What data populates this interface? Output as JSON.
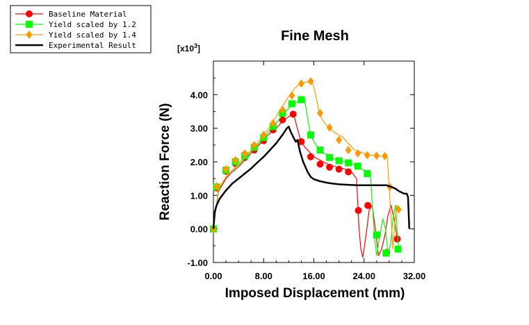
{
  "chart_data": {
    "type": "line",
    "title": "Fine Mesh",
    "xlabel": "Imposed Displacement (mm)",
    "ylabel": "Reaction Force (N)",
    "y_multiplier_label": "[x10",
    "y_multiplier_exp": "3",
    "y_multiplier_close": "]",
    "xlim": [
      0,
      32
    ],
    "ylim": [
      -1,
      5
    ],
    "x_ticks": [
      0,
      8,
      16,
      24,
      32
    ],
    "x_tick_labels": [
      "0.00",
      "8.00",
      "16.00",
      "24.00",
      "32.00"
    ],
    "y_ticks": [
      -1,
      0,
      1,
      2,
      3,
      4
    ],
    "y_tick_labels": [
      "-1.00",
      "0.00",
      "1.00",
      "2.00",
      "3.00",
      "4.00"
    ],
    "grid": false,
    "legend_position": "top-left",
    "series": [
      {
        "name": "Baseline Material",
        "color": "#ff0000",
        "marker": "circle",
        "points": [
          [
            0,
            0
          ],
          [
            0.4,
            0.6
          ],
          [
            0.8,
            1.1
          ],
          [
            1.2,
            1.25
          ],
          [
            2,
            1.5
          ],
          [
            3,
            1.7
          ],
          [
            4,
            1.85
          ],
          [
            5,
            2.05
          ],
          [
            6,
            2.25
          ],
          [
            7,
            2.45
          ],
          [
            8,
            2.65
          ],
          [
            9,
            2.85
          ],
          [
            10,
            3.0
          ],
          [
            11,
            3.2
          ],
          [
            12,
            3.35
          ],
          [
            12.8,
            3.4
          ],
          [
            13.3,
            3.05
          ],
          [
            13.8,
            2.7
          ],
          [
            14.5,
            2.45
          ],
          [
            16,
            2.15
          ],
          [
            17,
            2.05
          ],
          [
            18,
            1.95
          ],
          [
            19,
            1.88
          ],
          [
            20,
            1.83
          ],
          [
            21,
            1.78
          ],
          [
            22,
            1.7
          ],
          [
            22.8,
            1.5
          ],
          [
            23.2,
            0.0
          ],
          [
            23.5,
            -0.6
          ],
          [
            23.8,
            -0.85
          ],
          [
            24.3,
            -0.2
          ],
          [
            24.8,
            0.55
          ],
          [
            25.3,
            0.7
          ],
          [
            25.8,
            0.0
          ],
          [
            26.3,
            -0.8
          ],
          [
            26.8,
            -0.6
          ],
          [
            27.3,
            -0.2
          ],
          [
            27.8,
            0.4
          ],
          [
            28.3,
            0.7
          ],
          [
            28.8,
            0.3
          ],
          [
            29.3,
            -0.3
          ]
        ],
        "marker_points": [
          [
            0,
            0
          ],
          [
            0.5,
            1.22
          ],
          [
            2,
            1.72
          ],
          [
            3.5,
            1.95
          ],
          [
            5,
            2.13
          ],
          [
            6.5,
            2.35
          ],
          [
            8,
            2.63
          ],
          [
            9.5,
            2.95
          ],
          [
            11,
            3.25
          ],
          [
            12.7,
            3.42
          ],
          [
            14,
            2.6
          ],
          [
            15.5,
            2.15
          ],
          [
            17,
            1.93
          ],
          [
            18.5,
            1.84
          ],
          [
            20,
            1.78
          ],
          [
            21.5,
            1.7
          ],
          [
            23.1,
            0.55
          ],
          [
            24.6,
            0.7
          ],
          [
            26.1,
            -0.18
          ],
          [
            27.6,
            -0.7
          ],
          [
            29.3,
            -0.3
          ]
        ]
      },
      {
        "name": "Yield scaled by 1.2",
        "color": "#00ff00",
        "marker": "square",
        "points": [
          [
            0,
            0
          ],
          [
            0.4,
            0.6
          ],
          [
            0.8,
            1.15
          ],
          [
            1.2,
            1.3
          ],
          [
            2,
            1.55
          ],
          [
            3,
            1.75
          ],
          [
            4,
            1.9
          ],
          [
            5,
            2.1
          ],
          [
            6,
            2.3
          ],
          [
            7,
            2.5
          ],
          [
            8,
            2.7
          ],
          [
            9,
            2.95
          ],
          [
            10,
            3.15
          ],
          [
            11,
            3.4
          ],
          [
            12,
            3.6
          ],
          [
            13,
            3.75
          ],
          [
            14,
            3.85
          ],
          [
            14.5,
            3.9
          ],
          [
            15,
            3.3
          ],
          [
            15.5,
            2.8
          ],
          [
            16,
            2.6
          ],
          [
            17,
            2.35
          ],
          [
            18,
            2.2
          ],
          [
            19,
            2.1
          ],
          [
            20,
            2.05
          ],
          [
            21,
            2.0
          ],
          [
            22,
            1.95
          ],
          [
            23,
            1.85
          ],
          [
            24,
            1.75
          ],
          [
            25,
            1.65
          ],
          [
            25.4,
            0.5
          ],
          [
            25.7,
            -0.3
          ],
          [
            26,
            -0.8
          ],
          [
            26.5,
            -0.2
          ],
          [
            27,
            0.3
          ],
          [
            27.4,
            0.0
          ],
          [
            27.8,
            -0.7
          ],
          [
            28.2,
            -0.5
          ],
          [
            28.6,
            0.3
          ],
          [
            29,
            0.7
          ],
          [
            29.5,
            -0.6
          ]
        ],
        "marker_points": [
          [
            0,
            0
          ],
          [
            0.5,
            1.25
          ],
          [
            2,
            1.75
          ],
          [
            3.5,
            2.0
          ],
          [
            5,
            2.18
          ],
          [
            6.5,
            2.43
          ],
          [
            8,
            2.72
          ],
          [
            9.5,
            3.05
          ],
          [
            11,
            3.45
          ],
          [
            12.5,
            3.73
          ],
          [
            14,
            3.85
          ],
          [
            15.5,
            2.8
          ],
          [
            17,
            2.35
          ],
          [
            18.5,
            2.13
          ],
          [
            20,
            2.03
          ],
          [
            21.5,
            1.97
          ],
          [
            23,
            1.87
          ],
          [
            24.5,
            1.65
          ],
          [
            26,
            -0.18
          ],
          [
            27.5,
            -0.72
          ],
          [
            29.4,
            -0.6
          ]
        ]
      },
      {
        "name": "Yield scaled by 1.4",
        "color": "#ff9900",
        "marker": "diamond",
        "points": [
          [
            0,
            0
          ],
          [
            0.4,
            0.6
          ],
          [
            0.8,
            1.15
          ],
          [
            1.2,
            1.3
          ],
          [
            2,
            1.55
          ],
          [
            3,
            1.75
          ],
          [
            4,
            1.95
          ],
          [
            5,
            2.15
          ],
          [
            6,
            2.35
          ],
          [
            7,
            2.55
          ],
          [
            8,
            2.8
          ],
          [
            9,
            3.05
          ],
          [
            10,
            3.35
          ],
          [
            11,
            3.65
          ],
          [
            12,
            3.95
          ],
          [
            13,
            4.2
          ],
          [
            14,
            4.35
          ],
          [
            15,
            4.38
          ],
          [
            15.7,
            4.42
          ],
          [
            16.3,
            4.0
          ],
          [
            16.8,
            3.5
          ],
          [
            17.5,
            3.2
          ],
          [
            18.5,
            3.0
          ],
          [
            19.5,
            2.85
          ],
          [
            20.5,
            2.75
          ],
          [
            21.5,
            2.55
          ],
          [
            22.5,
            2.35
          ],
          [
            24,
            2.25
          ],
          [
            25,
            2.2
          ],
          [
            26,
            2.18
          ],
          [
            27,
            2.17
          ],
          [
            27.7,
            2.15
          ],
          [
            28,
            1.2
          ],
          [
            28.3,
            0.3
          ],
          [
            28.6,
            -0.6
          ],
          [
            28.9,
            0.2
          ],
          [
            29.2,
            0.7
          ],
          [
            29.5,
            0.6
          ]
        ],
        "marker_points": [
          [
            0,
            0
          ],
          [
            0.5,
            1.27
          ],
          [
            2,
            1.78
          ],
          [
            3.5,
            2.05
          ],
          [
            5,
            2.25
          ],
          [
            6.5,
            2.5
          ],
          [
            8,
            2.8
          ],
          [
            9.5,
            3.15
          ],
          [
            11,
            3.55
          ],
          [
            12.5,
            3.97
          ],
          [
            14,
            4.33
          ],
          [
            15.5,
            4.4
          ],
          [
            17,
            3.45
          ],
          [
            18.5,
            3.02
          ],
          [
            20,
            2.65
          ],
          [
            21.5,
            2.35
          ],
          [
            23,
            2.25
          ],
          [
            24.5,
            2.2
          ],
          [
            26,
            2.18
          ],
          [
            27.3,
            2.17
          ],
          [
            28.1,
            1.25
          ],
          [
            29.5,
            0.58
          ]
        ]
      },
      {
        "name": "Experimental Result",
        "color": "#000000",
        "marker": "none",
        "points": [
          [
            0,
            0
          ],
          [
            0.2,
            0.5
          ],
          [
            0.5,
            0.7
          ],
          [
            1,
            0.9
          ],
          [
            2,
            1.15
          ],
          [
            3,
            1.35
          ],
          [
            4,
            1.5
          ],
          [
            5,
            1.65
          ],
          [
            6,
            1.8
          ],
          [
            7,
            1.98
          ],
          [
            8,
            2.15
          ],
          [
            9,
            2.35
          ],
          [
            10,
            2.55
          ],
          [
            11,
            2.8
          ],
          [
            11.7,
            3.0
          ],
          [
            12.0,
            3.05
          ],
          [
            12.3,
            2.9
          ],
          [
            12.7,
            2.75
          ],
          [
            13.1,
            2.6
          ],
          [
            13.4,
            2.65
          ],
          [
            13.8,
            2.3
          ],
          [
            14.3,
            2.0
          ],
          [
            15,
            1.7
          ],
          [
            15.5,
            1.55
          ],
          [
            16,
            1.48
          ],
          [
            17,
            1.42
          ],
          [
            18,
            1.38
          ],
          [
            19,
            1.35
          ],
          [
            20,
            1.33
          ],
          [
            21,
            1.32
          ],
          [
            22,
            1.31
          ],
          [
            23,
            1.3
          ],
          [
            24,
            1.3
          ],
          [
            25,
            1.3
          ],
          [
            26,
            1.3
          ],
          [
            27,
            1.3
          ],
          [
            27.6,
            1.3
          ],
          [
            28.4,
            1.25
          ],
          [
            29,
            1.2
          ],
          [
            29.6,
            1.12
          ],
          [
            30.4,
            1.05
          ],
          [
            30.8,
            1.05
          ],
          [
            31.0,
            0.95
          ],
          [
            31.2,
            0.0
          ]
        ]
      }
    ]
  }
}
